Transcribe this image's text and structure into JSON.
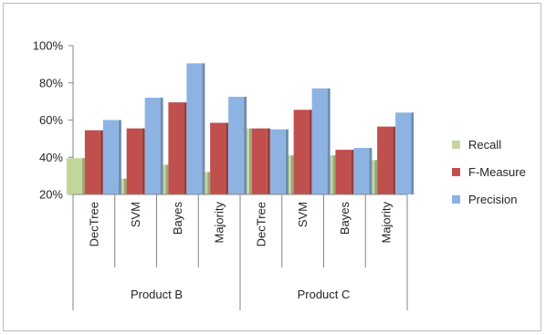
{
  "chart_data": {
    "type": "bar",
    "groups": [
      {
        "name": "Product B",
        "categories": [
          "DecTree",
          "SVM",
          "Bayes",
          "Majority"
        ]
      },
      {
        "name": "Product C",
        "categories": [
          "DecTree",
          "SVM",
          "Bayes",
          "Majority"
        ]
      }
    ],
    "series": [
      {
        "name": "Recall",
        "color": "#c4d79b",
        "values": [
          39.5,
          28.5,
          36,
          32,
          55.5,
          41,
          41,
          38.5
        ]
      },
      {
        "name": "F-Measure",
        "color": "#c0504d",
        "values": [
          54.5,
          55.5,
          69.5,
          58.5,
          55.5,
          65.5,
          44,
          56.5
        ]
      },
      {
        "name": "Precision",
        "color": "#8db3e2",
        "values": [
          60,
          72,
          90.5,
          72.5,
          55,
          77,
          45,
          64
        ]
      }
    ],
    "y_ticks": [
      "20%",
      "40%",
      "60%",
      "80%",
      "100%"
    ],
    "ylim": [
      20,
      100
    ],
    "legend_position": "right",
    "grid": false
  }
}
